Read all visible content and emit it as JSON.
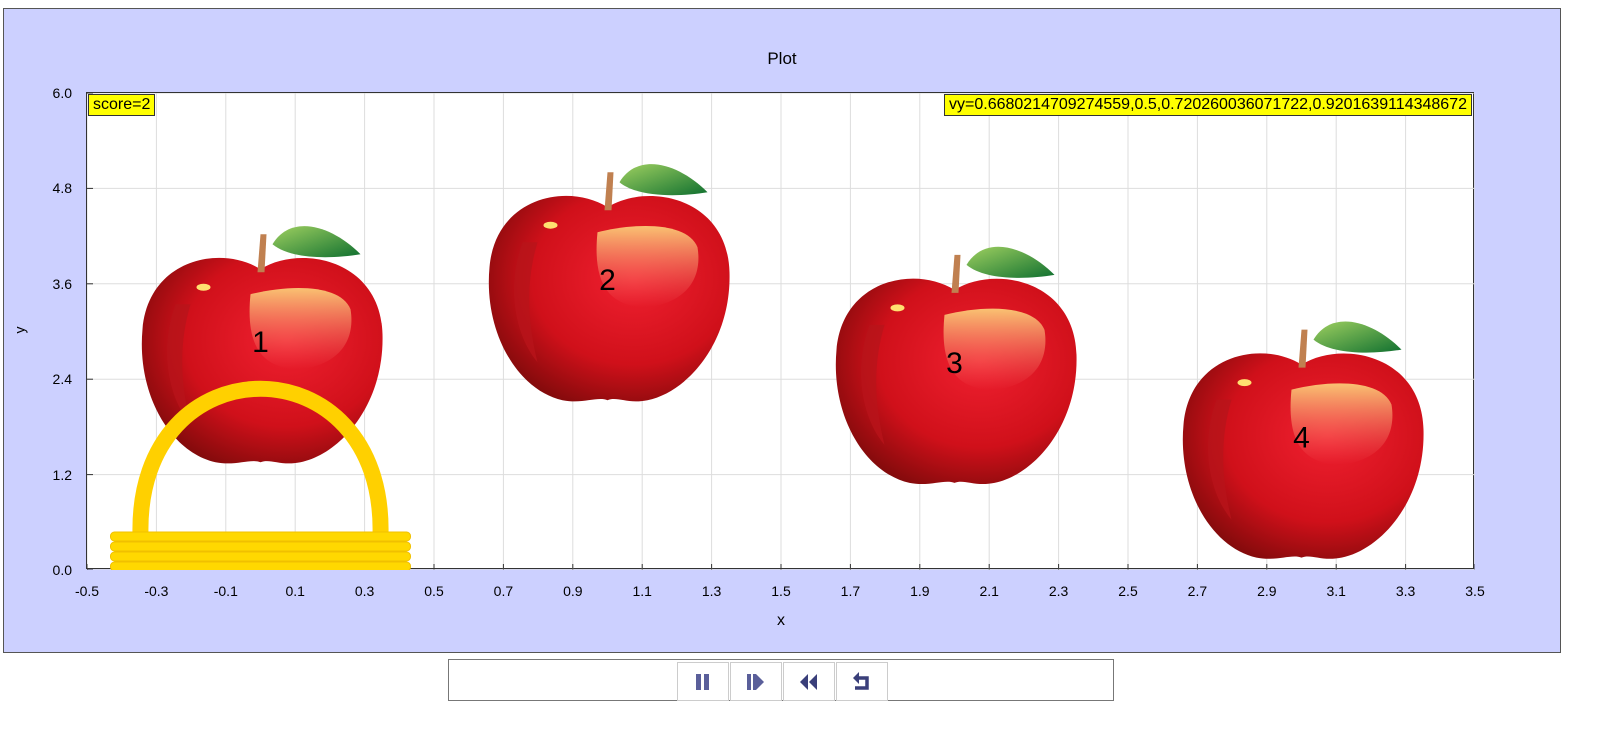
{
  "plot": {
    "title": "Plot",
    "xlabel": "x",
    "ylabel": "y",
    "xlim": [
      -0.5,
      3.5
    ],
    "ylim": [
      0,
      6
    ],
    "xticks": [
      "-0.5",
      "-0.3",
      "-0.1",
      "0.1",
      "0.3",
      "0.5",
      "0.7",
      "0.9",
      "1.1",
      "1.3",
      "1.5",
      "1.7",
      "1.9",
      "2.1",
      "2.3",
      "2.5",
      "2.7",
      "2.9",
      "3.1",
      "3.3",
      "3.5"
    ],
    "yticks": [
      "0.0",
      "1.2",
      "2.4",
      "3.6",
      "4.8",
      "6.0"
    ],
    "score_label": "score=2",
    "vy_label": "vy=0.6680214709274559,0.5,0.720260036071722,0.9201639114348672",
    "apples": [
      {
        "label": "1",
        "x": 0,
        "y": 2.84
      },
      {
        "label": "2",
        "x": 1,
        "y": 3.62
      },
      {
        "label": "3",
        "x": 2,
        "y": 2.58
      },
      {
        "label": "4",
        "x": 3,
        "y": 1.64
      }
    ],
    "basket": {
      "x": 0,
      "y": 0
    }
  },
  "controls": {
    "buttons": [
      {
        "name": "pause",
        "icon": "pause-icon"
      },
      {
        "name": "step",
        "icon": "step-icon"
      },
      {
        "name": "reset-time",
        "icon": "rewind-icon"
      },
      {
        "name": "reset",
        "icon": "reset-icon"
      }
    ]
  }
}
